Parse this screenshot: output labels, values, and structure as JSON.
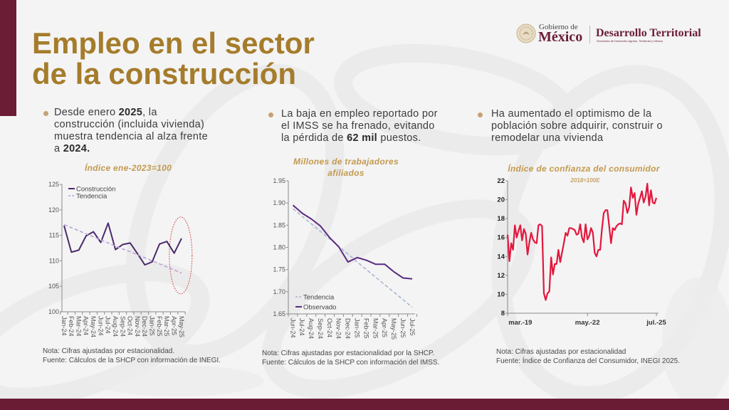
{
  "header": {
    "title_line1": "Empleo en el sector",
    "title_line2": "de la construcción"
  },
  "logo": {
    "gobierno": "Gobierno de",
    "mexico": "México",
    "dependencia": "Desarrollo Territorial",
    "dependencia_sub": "Secretaría de Desarrollo Agrario, Territorial y Urbano"
  },
  "colors": {
    "maroon": "#6b1d36",
    "gold": "#a57c2b",
    "chart_title_gold": "#c29a50",
    "bullet": "#c5a173"
  },
  "columns": [
    {
      "bullet": [
        {
          "text": "Desde enero ",
          "bold": false
        },
        {
          "text": "2025",
          "bold": true
        },
        {
          "text": ", la construcción (incluida vivienda) muestra tendencia al alza frente a ",
          "bold": false
        },
        {
          "text": "2024.",
          "bold": true
        }
      ],
      "note": "Nota: Cifras ajustadas por estacionalidad.",
      "source": "Fuente: Cálculos de la SHCP con información de INEGI."
    },
    {
      "bullet": [
        {
          "text": "La baja en empleo reportado por el IMSS se ha frenado, evitando la pérdida de ",
          "bold": false
        },
        {
          "text": "62 mil",
          "bold": true
        },
        {
          "text": " puestos.",
          "bold": false
        }
      ],
      "note": "Nota: Cifras ajustadas por estacionalidad por la SHCP.",
      "source": "Fuente: Cálculos de la SHCP con información del IMSS."
    },
    {
      "bullet": [
        {
          "text": "Ha aumentado el optimismo de la población sobre adquirir, construir o remodelar una vivienda",
          "bold": false
        }
      ],
      "note": "Nota: Cifras ajustadas por estacionalidad",
      "source": "Fuente: Índice de Confianza del Consumidor, INEGI 2025."
    }
  ],
  "chart_data": [
    {
      "type": "line",
      "title": "Índice ene-2023=100",
      "xlabel": "",
      "ylabel": "",
      "categories": [
        "Jan-24",
        "Feb-24",
        "Mar-24",
        "Apr-24",
        "May-24",
        "Jun-24",
        "Jul-24",
        "Aug-24",
        "Sep-24",
        "Oct-24",
        "Nov-24",
        "Dec-24",
        "Jan-25",
        "Feb-25",
        "Mar-25",
        "Apr-25",
        "May-25"
      ],
      "series": [
        {
          "name": "Construcción",
          "style": "solid",
          "color": "#4b2a6b",
          "values": [
            116.9,
            111.7,
            112.1,
            114.9,
            115.7,
            113.6,
            117.4,
            112.2,
            113.2,
            113.5,
            111.4,
            109.2,
            109.8,
            113.3,
            113.8,
            111.5,
            114.4
          ]
        },
        {
          "name": "Tendencia",
          "style": "dashed",
          "color": "#b9a3d8",
          "values": [
            117.1,
            116.5,
            115.9,
            115.3,
            114.7,
            114.1,
            113.5,
            112.9,
            112.3,
            111.8,
            111.2,
            110.6,
            110.0,
            109.4,
            108.8,
            108.2,
            107.6
          ]
        }
      ],
      "ylim": [
        100,
        125
      ],
      "yticks": [
        100,
        105,
        110,
        115,
        120,
        125
      ],
      "legend": "top-left",
      "grid": false,
      "highlight": {
        "categories": [
          "Apr-25",
          "May-25"
        ],
        "yrange": [
          103.5,
          118.6
        ],
        "color": "#cf5656"
      }
    },
    {
      "type": "line",
      "title": "Millones de trabajadores afiliados",
      "title_lines": [
        "Millones de trabajadores",
        "afiliados"
      ],
      "xlabel": "",
      "ylabel": "",
      "categories": [
        "Jun-24",
        "Jul-24",
        "Aug-24",
        "Sep-24",
        "Oct-24",
        "Nov-24",
        "Dec-24",
        "Jan-25",
        "Feb-25",
        "Mar-25",
        "Apr-25",
        "May-25",
        "Jun-25",
        "Jul-25"
      ],
      "series": [
        {
          "name": "Tendencia",
          "style": "dashed",
          "color": "#a9b6d3",
          "values": [
            1.887,
            1.87,
            1.853,
            1.836,
            1.819,
            1.802,
            1.785,
            1.767,
            1.75,
            1.733,
            1.716,
            1.699,
            1.682,
            1.665
          ]
        },
        {
          "name": "Observado",
          "style": "solid",
          "color": "#5a2c82",
          "values": [
            1.895,
            1.877,
            1.864,
            1.848,
            1.822,
            1.801,
            1.767,
            1.777,
            1.771,
            1.762,
            1.762,
            1.745,
            1.731,
            1.729
          ]
        }
      ],
      "ylim": [
        1.65,
        1.95
      ],
      "yticks": [
        "1.65",
        "1.70",
        "1.75",
        "1.80",
        "1.85",
        "1.90",
        "1.95"
      ],
      "legend": "bottom-left",
      "grid": false
    },
    {
      "type": "line",
      "title": "Índice de confianza del consumidor",
      "subtitle": "2018=100E",
      "xlabel": "",
      "ylabel": "",
      "series": [
        {
          "style": "solid",
          "color": "#e3173e",
          "values": [
            16.3,
            13.5,
            15.4,
            14.7,
            17.3,
            16.0,
            16.7,
            17.3,
            15.7,
            16.9,
            16.4,
            14.2,
            15.5,
            16.5,
            15.8,
            15.5,
            15.4,
            17.3,
            17.4,
            17.2,
            10.1,
            9.4,
            10.1,
            10.3,
            13.9,
            12.1,
            13.2,
            13.2,
            14.7,
            13.4,
            14.4,
            15.4,
            16.5,
            16.2,
            17.0,
            17.0,
            16.9,
            16.8,
            16.3,
            16.4,
            17.4,
            16.0,
            15.5,
            17.4,
            15.8,
            16.2,
            17.0,
            16.5,
            14.4,
            14.0,
            14.7,
            14.7,
            16.9,
            18.6,
            18.9,
            18.9,
            17.2,
            15.4,
            17.0,
            16.8,
            17.2,
            17.4,
            17.5,
            17.4,
            19.9,
            19.6,
            18.6,
            19.2,
            21.3,
            20.2,
            20.7,
            18.4,
            19.6,
            20.2,
            20.9,
            19.7,
            20.3,
            21.7,
            19.4,
            21.0,
            19.7,
            19.6,
            20.2
          ]
        }
      ],
      "x_tick_labels": [
        {
          "label": "mar.-19",
          "index": 7
        },
        {
          "label": "may.-22",
          "index": 44
        },
        {
          "label": "jul.-25",
          "index": 82
        }
      ],
      "x_tick_marks": [
        0,
        44,
        82
      ],
      "ylim": [
        8,
        22
      ],
      "yticks": [
        8,
        10,
        12,
        14,
        16,
        18,
        20,
        22
      ],
      "legend": "none",
      "grid": false
    }
  ]
}
